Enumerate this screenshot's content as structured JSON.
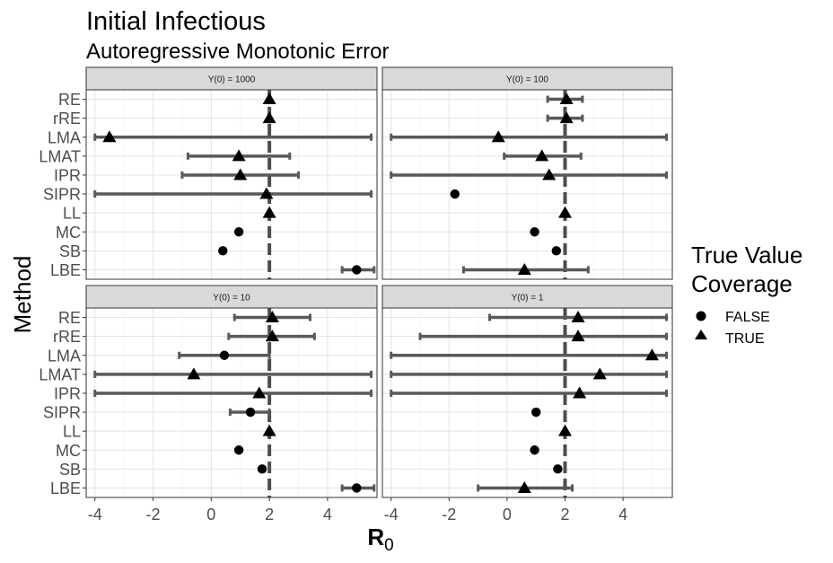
{
  "title": "Initial Infectious",
  "subtitle": "Autoregressive Monotonic Error",
  "chart_data": {
    "type": "forest",
    "xlabel": "R0",
    "xlabel_main": "R",
    "xlabel_sub": "0",
    "ylabel": "Method",
    "xlim": [
      -4.3,
      5.7
    ],
    "x_ticks": [
      -4,
      -2,
      0,
      2,
      4
    ],
    "x_tick_labels": [
      "-4",
      "-2",
      "0",
      "2",
      "4"
    ],
    "reference_value": 2,
    "methods": [
      "RE",
      "rRE",
      "LMA",
      "LMAT",
      "IPR",
      "SIPR",
      "LL",
      "MC",
      "SB",
      "LBE"
    ],
    "grid": true,
    "legend": {
      "title_line1": "True Value",
      "title_line2": "Coverage",
      "position": "right",
      "items": [
        {
          "label": "FALSE",
          "shape": "circle"
        },
        {
          "label": "TRUE",
          "shape": "triangle"
        }
      ]
    },
    "panels": [
      {
        "label": "Y(0) = 1000",
        "rows": [
          {
            "method": "RE",
            "est": 2.0,
            "lo": 2.0,
            "hi": 2.0,
            "covered": true
          },
          {
            "method": "rRE",
            "est": 2.0,
            "lo": 2.0,
            "hi": 2.0,
            "covered": true
          },
          {
            "method": "LMA",
            "est": -3.5,
            "lo": -4.0,
            "hi": 5.5,
            "covered": true
          },
          {
            "method": "LMAT",
            "est": 0.95,
            "lo": -0.8,
            "hi": 2.7,
            "covered": true
          },
          {
            "method": "IPR",
            "est": 1.0,
            "lo": -1.0,
            "hi": 3.0,
            "covered": true
          },
          {
            "method": "SIPR",
            "est": 1.9,
            "lo": -4.0,
            "hi": 5.5,
            "covered": true
          },
          {
            "method": "LL",
            "est": 2.0,
            "lo": 2.0,
            "hi": 2.0,
            "covered": true
          },
          {
            "method": "MC",
            "est": 0.95,
            "lo": 0.95,
            "hi": 0.95,
            "covered": false
          },
          {
            "method": "SB",
            "est": 0.4,
            "lo": 0.4,
            "hi": 0.4,
            "covered": false
          },
          {
            "method": "LBE",
            "est": 5.0,
            "lo": 4.5,
            "hi": 5.6,
            "covered": false
          }
        ]
      },
      {
        "label": "Y(0) = 100",
        "rows": [
          {
            "method": "RE",
            "est": 2.05,
            "lo": 1.4,
            "hi": 2.6,
            "covered": true
          },
          {
            "method": "rRE",
            "est": 2.05,
            "lo": 1.4,
            "hi": 2.6,
            "covered": true
          },
          {
            "method": "LMA",
            "est": -0.3,
            "lo": -4.0,
            "hi": 5.5,
            "covered": true
          },
          {
            "method": "LMAT",
            "est": 1.2,
            "lo": -0.1,
            "hi": 2.55,
            "covered": true
          },
          {
            "method": "IPR",
            "est": 1.45,
            "lo": -4.0,
            "hi": 5.5,
            "covered": true
          },
          {
            "method": "SIPR",
            "est": -1.8,
            "lo": -1.8,
            "hi": -1.8,
            "covered": false
          },
          {
            "method": "LL",
            "est": 2.0,
            "lo": 2.0,
            "hi": 2.0,
            "covered": true
          },
          {
            "method": "MC",
            "est": 0.95,
            "lo": 0.95,
            "hi": 0.95,
            "covered": false
          },
          {
            "method": "SB",
            "est": 1.7,
            "lo": 1.7,
            "hi": 1.7,
            "covered": false
          },
          {
            "method": "LBE",
            "est": 0.6,
            "lo": -1.5,
            "hi": 2.8,
            "covered": true
          }
        ]
      },
      {
        "label": "Y(0) = 10",
        "rows": [
          {
            "method": "RE",
            "est": 2.1,
            "lo": 0.8,
            "hi": 3.4,
            "covered": true
          },
          {
            "method": "rRE",
            "est": 2.1,
            "lo": 0.6,
            "hi": 3.55,
            "covered": true
          },
          {
            "method": "LMA",
            "est": 0.45,
            "lo": -1.1,
            "hi": 2.0,
            "covered": false
          },
          {
            "method": "LMAT",
            "est": -0.6,
            "lo": -4.0,
            "hi": 5.5,
            "covered": true
          },
          {
            "method": "IPR",
            "est": 1.65,
            "lo": -4.0,
            "hi": 5.5,
            "covered": true
          },
          {
            "method": "SIPR",
            "est": 1.35,
            "lo": 0.65,
            "hi": 2.0,
            "covered": false
          },
          {
            "method": "LL",
            "est": 2.0,
            "lo": 2.0,
            "hi": 2.0,
            "covered": true
          },
          {
            "method": "MC",
            "est": 0.95,
            "lo": 0.95,
            "hi": 0.95,
            "covered": false
          },
          {
            "method": "SB",
            "est": 1.75,
            "lo": 1.75,
            "hi": 1.75,
            "covered": false
          },
          {
            "method": "LBE",
            "est": 5.0,
            "lo": 4.5,
            "hi": 5.6,
            "covered": false
          }
        ]
      },
      {
        "label": "Y(0) = 1",
        "rows": [
          {
            "method": "RE",
            "est": 2.45,
            "lo": -0.6,
            "hi": 5.5,
            "covered": true
          },
          {
            "method": "rRE",
            "est": 2.45,
            "lo": -3.0,
            "hi": 5.5,
            "covered": true
          },
          {
            "method": "LMA",
            "est": 5.0,
            "lo": -4.0,
            "hi": 5.5,
            "covered": true
          },
          {
            "method": "LMAT",
            "est": 3.2,
            "lo": -4.0,
            "hi": 5.5,
            "covered": true
          },
          {
            "method": "IPR",
            "est": 2.5,
            "lo": -4.0,
            "hi": 5.5,
            "covered": true
          },
          {
            "method": "SIPR",
            "est": 1.0,
            "lo": 1.0,
            "hi": 1.0,
            "covered": false
          },
          {
            "method": "LL",
            "est": 2.0,
            "lo": 2.0,
            "hi": 2.0,
            "covered": true
          },
          {
            "method": "MC",
            "est": 0.95,
            "lo": 0.95,
            "hi": 0.95,
            "covered": false
          },
          {
            "method": "SB",
            "est": 1.75,
            "lo": 1.75,
            "hi": 1.75,
            "covered": false
          },
          {
            "method": "LBE",
            "est": 0.6,
            "lo": -1.0,
            "hi": 2.25,
            "covered": true
          }
        ]
      }
    ]
  }
}
